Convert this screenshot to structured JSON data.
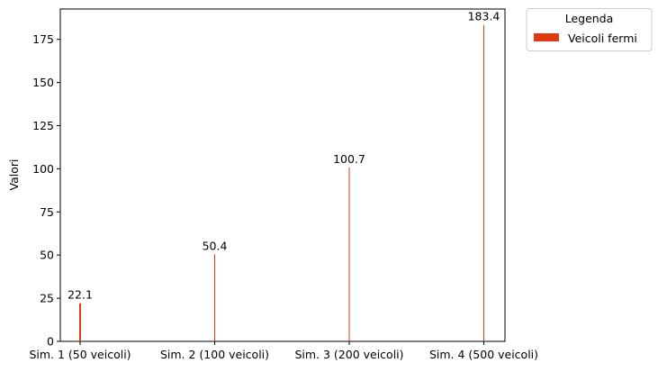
{
  "chart_data": {
    "type": "bar",
    "categories": [
      "Sim. 1 (50 veicoli)",
      "Sim. 2 (100 veicoli)",
      "Sim. 3 (200 veicoli)",
      "Sim. 4 (500 veicoli)"
    ],
    "series": [
      {
        "name": "Veicoli fermi",
        "values": [
          22.1,
          50.4,
          100.7,
          183.4
        ]
      }
    ],
    "data_labels": [
      "22.1",
      "50.4",
      "100.7",
      "183.4"
    ],
    "xlabel": "",
    "ylabel": "Valori",
    "ylim": [
      0,
      192.6
    ],
    "yticks": [
      0,
      25,
      50,
      75,
      100,
      125,
      150,
      175
    ],
    "grid": false,
    "legend": {
      "title": "Legenda",
      "placement": "outside-top-right"
    },
    "colors": {
      "bar": "#e03c12",
      "axis": "#000000"
    }
  }
}
